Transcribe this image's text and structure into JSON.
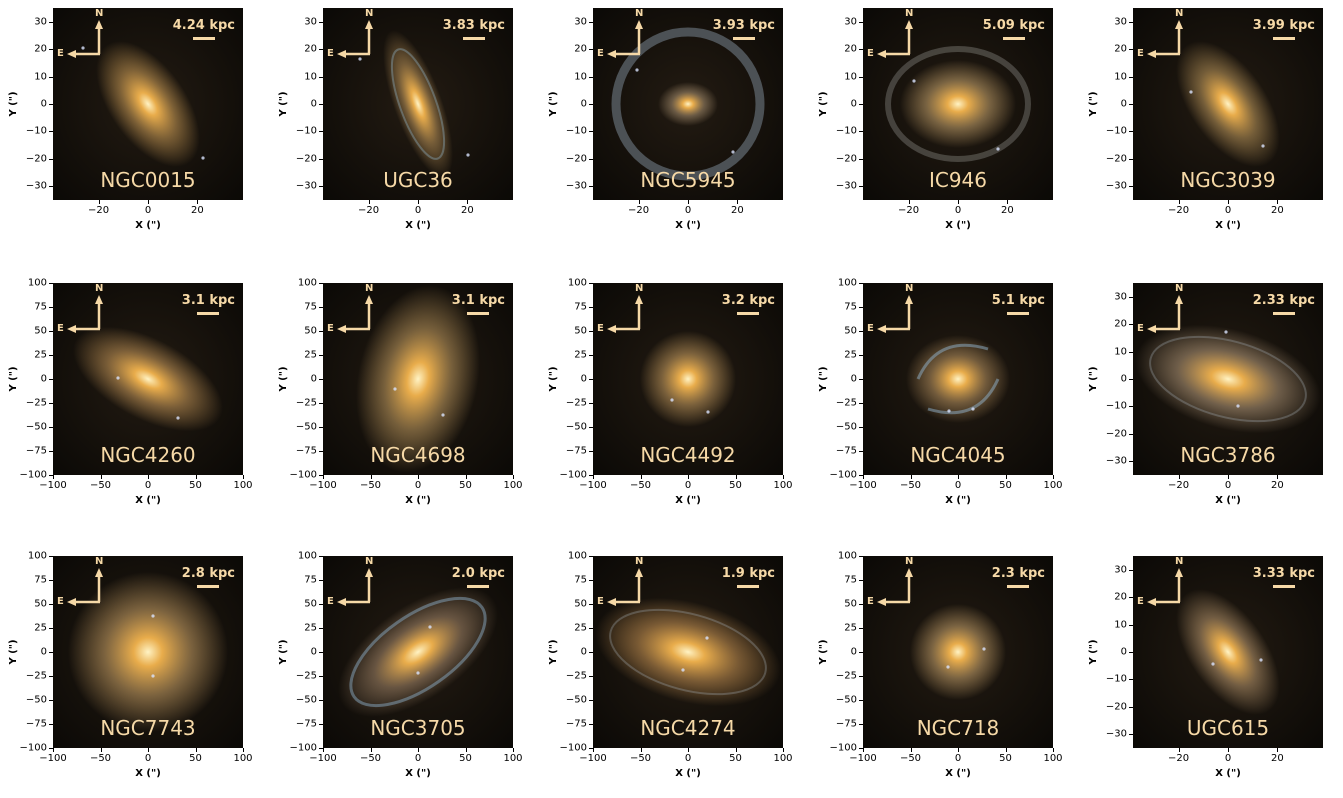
{
  "rows": [
    {
      "axis_x_label": "X (\")",
      "axis_y_label": "Y (\")",
      "yticks": [
        "30",
        "20",
        "10",
        "0",
        "−10",
        "−20",
        "−30"
      ],
      "xticks": [
        "−20",
        "0",
        "20"
      ],
      "panels": [
        {
          "name": "NGC0015",
          "scale": "4.24 kpc",
          "compass_n": "N",
          "compass_e": "E",
          "tint": "#c89a55",
          "shape": "ellipse-tilt"
        },
        {
          "name": "UGC36",
          "scale": "3.83 kpc",
          "compass_n": "N",
          "compass_e": "E",
          "tint": "#b99258",
          "shape": "spiral-narrow"
        },
        {
          "name": "NGC5945",
          "scale": "3.93 kpc",
          "compass_n": "N",
          "compass_e": "E",
          "tint": "#a68e6e",
          "shape": "ring"
        },
        {
          "name": "IC946",
          "scale": "5.09 kpc",
          "compass_n": "N",
          "compass_e": "E",
          "tint": "#c2a06a",
          "shape": "ring-faint"
        },
        {
          "name": "NGC3039",
          "scale": "3.99 kpc",
          "compass_n": "N",
          "compass_e": "E",
          "tint": "#b9955a",
          "shape": "ellipse-tilt"
        }
      ]
    },
    {
      "axis_x_label": "X (\")",
      "axis_y_label": "Y (\")",
      "yticks": [
        "100",
        "75",
        "50",
        "25",
        "0",
        "−25",
        "−50",
        "−75",
        "−100"
      ],
      "xticks": [
        "−100",
        "−50",
        "0",
        "50",
        "100"
      ],
      "panels": [
        {
          "name": "NGC4260",
          "scale": "3.1 kpc",
          "compass_n": "N",
          "compass_e": "E",
          "tint": "#c49658",
          "shape": "ellipse-wide"
        },
        {
          "name": "NGC4698",
          "scale": "3.1 kpc",
          "compass_n": "N",
          "compass_e": "E",
          "tint": "#bf9a5f",
          "shape": "ellipse-vertical"
        },
        {
          "name": "NGC4492",
          "scale": "3.2 kpc",
          "compass_n": "N",
          "compass_e": "E",
          "tint": "#c39a5e",
          "shape": "round-small"
        },
        {
          "name": "NGC4045",
          "scale": "5.1 kpc",
          "compass_n": "N",
          "compass_e": "E",
          "tint": "#b38f5e",
          "shape": "spiral"
        },
        {
          "name": "NGC3786",
          "scale": "2.33 kpc",
          "compass_n": "N",
          "compass_e": "E",
          "tint": "#b3997a",
          "shape": "ellipse-wide-big"
        }
      ]
    },
    {
      "axis_x_label": "X (\")",
      "axis_y_label": "Y (\")",
      "yticks": [
        "100",
        "75",
        "50",
        "25",
        "0",
        "−25",
        "−50",
        "−75",
        "−100"
      ],
      "xticks": [
        "−100",
        "−50",
        "0",
        "50",
        "100"
      ],
      "panels": [
        {
          "name": "NGC7743",
          "scale": "2.8 kpc",
          "compass_n": "N",
          "compass_e": "E",
          "tint": "#c8a065",
          "shape": "round-big"
        },
        {
          "name": "NGC3705",
          "scale": "2.0 kpc",
          "compass_n": "N",
          "compass_e": "E",
          "tint": "#a4876a",
          "shape": "spiral-tilt"
        },
        {
          "name": "NGC4274",
          "scale": "1.9 kpc",
          "compass_n": "N",
          "compass_e": "E",
          "tint": "#c39052",
          "shape": "ellipse-wide-big"
        },
        {
          "name": "NGC718",
          "scale": "2.3 kpc",
          "compass_n": "N",
          "compass_e": "E",
          "tint": "#c4a06a",
          "shape": "round-small"
        },
        {
          "name": "UGC615",
          "scale": "3.33 kpc",
          "compass_n": "N",
          "compass_e": "E",
          "tint": "#b6956c",
          "shape": "ellipse-tilt"
        }
      ]
    }
  ],
  "row5_alt": {
    "yticks": [
      "30",
      "20",
      "10",
      "0",
      "−10",
      "−20",
      "−30"
    ],
    "xticks": [
      "−20",
      "0",
      "20"
    ]
  }
}
